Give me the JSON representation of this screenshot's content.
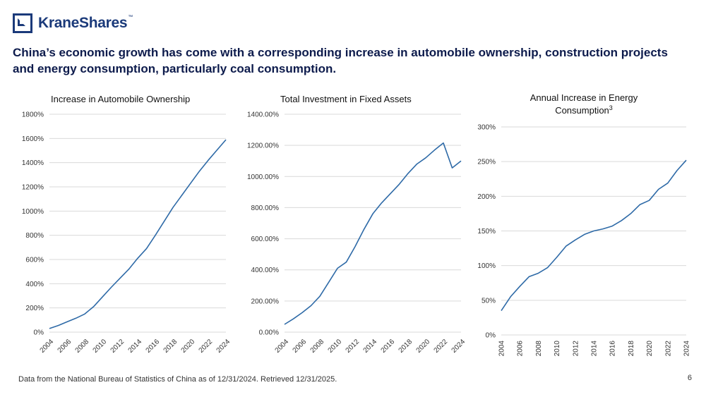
{
  "brand": {
    "name": "KraneShares",
    "tm": "™",
    "color": "#1b3a7a"
  },
  "headline": "China’s economic growth has come with a corresponding increase in automobile ownership, construction projects and energy consumption, particularly coal consumption.",
  "footnote": "Data from the National Bureau of Statistics of China as of 12/31/2024. Retrieved 12/31/2025.",
  "page_number": "6",
  "line_color": "#2e6aa7",
  "chart_data": [
    {
      "type": "line",
      "title": "Increase in Automobile Ownership",
      "title_sup": "",
      "x": [
        2004,
        2005,
        2006,
        2007,
        2008,
        2009,
        2010,
        2011,
        2012,
        2013,
        2014,
        2015,
        2016,
        2017,
        2018,
        2019,
        2020,
        2021,
        2022,
        2023,
        2024
      ],
      "y": [
        30,
        55,
        85,
        115,
        150,
        210,
        290,
        370,
        445,
        520,
        610,
        690,
        800,
        915,
        1030,
        1130,
        1230,
        1330,
        1420,
        1505,
        1590
      ],
      "ylim": [
        0,
        1800
      ],
      "yticks": [
        0,
        200,
        400,
        600,
        800,
        1000,
        1200,
        1400,
        1600,
        1800
      ],
      "ytick_labels": [
        "0%",
        "200%",
        "400%",
        "600%",
        "800%",
        "1000%",
        "1200%",
        "1400%",
        "1600%",
        "1800%"
      ],
      "xticks": [
        2004,
        2006,
        2008,
        2010,
        2012,
        2014,
        2016,
        2018,
        2020,
        2022,
        2024
      ],
      "grid": true
    },
    {
      "type": "line",
      "title": "Total Investment in Fixed Assets",
      "title_sup": "",
      "x": [
        2004,
        2005,
        2006,
        2007,
        2008,
        2009,
        2010,
        2011,
        2012,
        2013,
        2014,
        2015,
        2016,
        2017,
        2018,
        2019,
        2020,
        2021,
        2022,
        2023,
        2024
      ],
      "y": [
        50,
        85,
        125,
        170,
        230,
        320,
        410,
        450,
        550,
        660,
        760,
        830,
        890,
        950,
        1020,
        1080,
        1120,
        1170,
        1215,
        1055,
        1100
      ],
      "ylim": [
        0,
        1400
      ],
      "yticks": [
        0,
        200,
        400,
        600,
        800,
        1000,
        1200,
        1400
      ],
      "ytick_labels": [
        "0.00%",
        "200.00%",
        "400.00%",
        "600.00%",
        "800.00%",
        "1000.00%",
        "1200.00%",
        "1400.00%"
      ],
      "xticks": [
        2004,
        2006,
        2008,
        2010,
        2012,
        2014,
        2016,
        2018,
        2020,
        2022,
        2024
      ],
      "grid": true
    },
    {
      "type": "line",
      "title": "Annual Increase in Energy Consumption",
      "title_line1": "Annual Increase in Energy",
      "title_line2": "Consumption",
      "title_sup": "3",
      "x": [
        2004,
        2005,
        2006,
        2007,
        2008,
        2009,
        2010,
        2011,
        2012,
        2013,
        2014,
        2015,
        2016,
        2017,
        2018,
        2019,
        2020,
        2021,
        2022,
        2023,
        2024
      ],
      "y": [
        35,
        55,
        70,
        84,
        89,
        97,
        112,
        128,
        137,
        145,
        150,
        153,
        157,
        165,
        175,
        188,
        194,
        210,
        219,
        237,
        252
      ],
      "ylim": [
        0,
        300
      ],
      "yticks": [
        0,
        50,
        100,
        150,
        200,
        250,
        300
      ],
      "ytick_labels": [
        "0%",
        "50%",
        "100%",
        "150%",
        "200%",
        "250%",
        "300%"
      ],
      "xticks": [
        2004,
        2006,
        2008,
        2010,
        2012,
        2014,
        2016,
        2018,
        2020,
        2022,
        2024
      ],
      "grid": true
    }
  ]
}
